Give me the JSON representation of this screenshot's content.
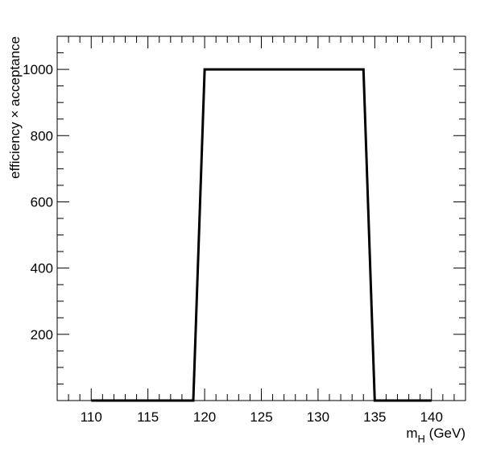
{
  "chart_data": {
    "type": "line",
    "title": "",
    "xlabel_main": "m",
    "xlabel_sub": "H",
    "xlabel_unit": " (GeV)",
    "ylabel": "efficiency × acceptance",
    "xlim": [
      107,
      143
    ],
    "ylim": [
      0,
      1100
    ],
    "x_major_ticks": [
      110,
      115,
      120,
      125,
      130,
      135,
      140
    ],
    "x_tick_labels": [
      "110",
      "115",
      "120",
      "125",
      "130",
      "135",
      "140"
    ],
    "x_minor_step": 1,
    "y_major_ticks": [
      200,
      400,
      600,
      800,
      1000
    ],
    "y_tick_labels": [
      "200",
      "400",
      "600",
      "800",
      "1000"
    ],
    "y_minor_step": 50,
    "grid": false,
    "legend": "none",
    "line_color": "#000000",
    "series": [
      {
        "x": [
          110,
          119,
          120,
          134,
          135,
          140
        ],
        "y": [
          0,
          0,
          1000,
          1000,
          0,
          0
        ]
      }
    ]
  }
}
